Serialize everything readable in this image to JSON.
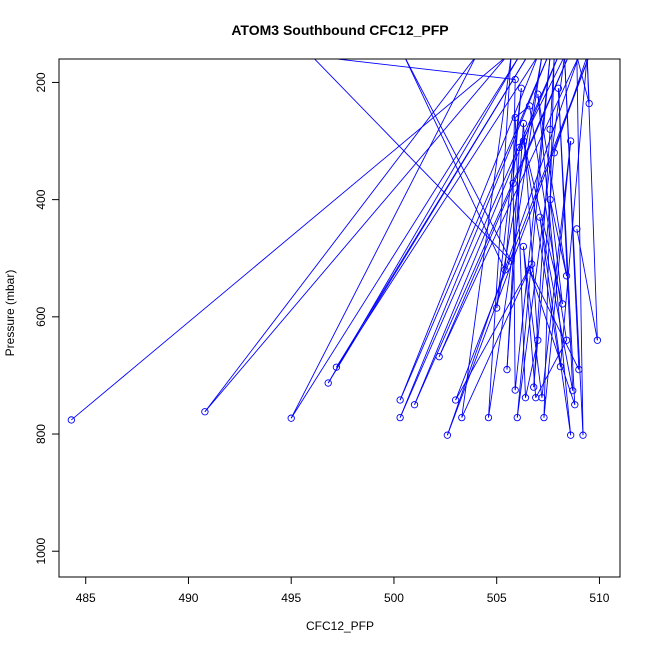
{
  "chart_data": {
    "type": "line",
    "title": "ATOM3 Southbound CFC12_PFP",
    "xlabel": "CFC12_PFP",
    "ylabel": "Pressure (mbar)",
    "xlim": [
      483.7,
      511
    ],
    "ylim": [
      1044,
      160
    ],
    "y_reversed": true,
    "x_ticks": [
      485,
      490,
      495,
      500,
      505,
      510
    ],
    "y_ticks": [
      200,
      400,
      600,
      800,
      1000
    ],
    "grid": false,
    "legend": "none",
    "colors": {
      "series": "#0000ff"
    },
    "series": [
      {
        "values": [
          [
            484.3,
            776
          ],
          [
            505.5,
            155
          ],
          [
            490.8,
            762
          ],
          [
            504.0,
            155
          ],
          [
            495.0,
            773
          ],
          [
            506.1,
            155
          ],
          [
            496.8,
            713
          ],
          [
            506.5,
            155
          ],
          [
            497.2,
            686
          ],
          [
            507.0,
            155
          ],
          [
            500.3,
            742
          ],
          [
            507.5,
            155
          ],
          [
            500.3,
            772
          ],
          [
            508.0,
            155
          ],
          [
            501.0,
            750
          ],
          [
            508.5,
            155
          ],
          [
            502.2,
            668
          ],
          [
            509.0,
            155
          ],
          [
            502.6,
            802
          ],
          [
            509.5,
            155
          ],
          [
            503.0,
            742
          ],
          [
            506.7,
            510
          ],
          [
            503.3,
            772
          ],
          [
            505.7,
            155
          ],
          [
            504.6,
            772
          ],
          [
            507.2,
            155
          ],
          [
            505.0,
            585
          ],
          [
            506.2,
            210
          ],
          [
            505.4,
            520
          ],
          [
            500.5,
            155
          ],
          [
            505.7,
            505
          ],
          [
            496.0,
            155
          ],
          [
            505.9,
            195
          ],
          [
            505.8,
            372
          ],
          [
            505.9,
            725
          ],
          [
            507.6,
            155
          ],
          [
            506.0,
            772
          ],
          [
            508.3,
            155
          ],
          [
            506.1,
            311
          ],
          [
            505.5,
            690
          ],
          [
            506.3,
            270
          ],
          [
            507.0,
            640
          ],
          [
            506.4,
            738
          ],
          [
            505.9,
            260
          ],
          [
            506.6,
            240
          ],
          [
            508.4,
            640
          ],
          [
            506.9,
            738
          ],
          [
            506.3,
            480
          ],
          [
            507.2,
            738
          ],
          [
            508.6,
            300
          ],
          [
            507.3,
            772
          ],
          [
            507.8,
            155
          ],
          [
            507.6,
            280
          ],
          [
            506.8,
            720
          ],
          [
            507.8,
            320
          ],
          [
            509.4,
            155
          ],
          [
            508.1,
            685
          ],
          [
            506.3,
            300
          ],
          [
            508.2,
            578
          ],
          [
            507.6,
            400
          ],
          [
            508.4,
            530
          ],
          [
            507.0,
            220
          ],
          [
            508.6,
            802
          ],
          [
            507.1,
            430
          ],
          [
            508.7,
            726
          ],
          [
            508.0,
            210
          ],
          [
            508.8,
            750
          ],
          [
            506.6,
            520
          ],
          [
            509.0,
            690
          ],
          [
            508.3,
            155
          ],
          [
            509.2,
            802
          ],
          [
            508.9,
            155
          ],
          [
            509.5,
            236
          ],
          [
            509.4,
            155
          ],
          [
            509.9,
            640
          ],
          [
            508.9,
            450
          ]
        ]
      }
    ]
  }
}
